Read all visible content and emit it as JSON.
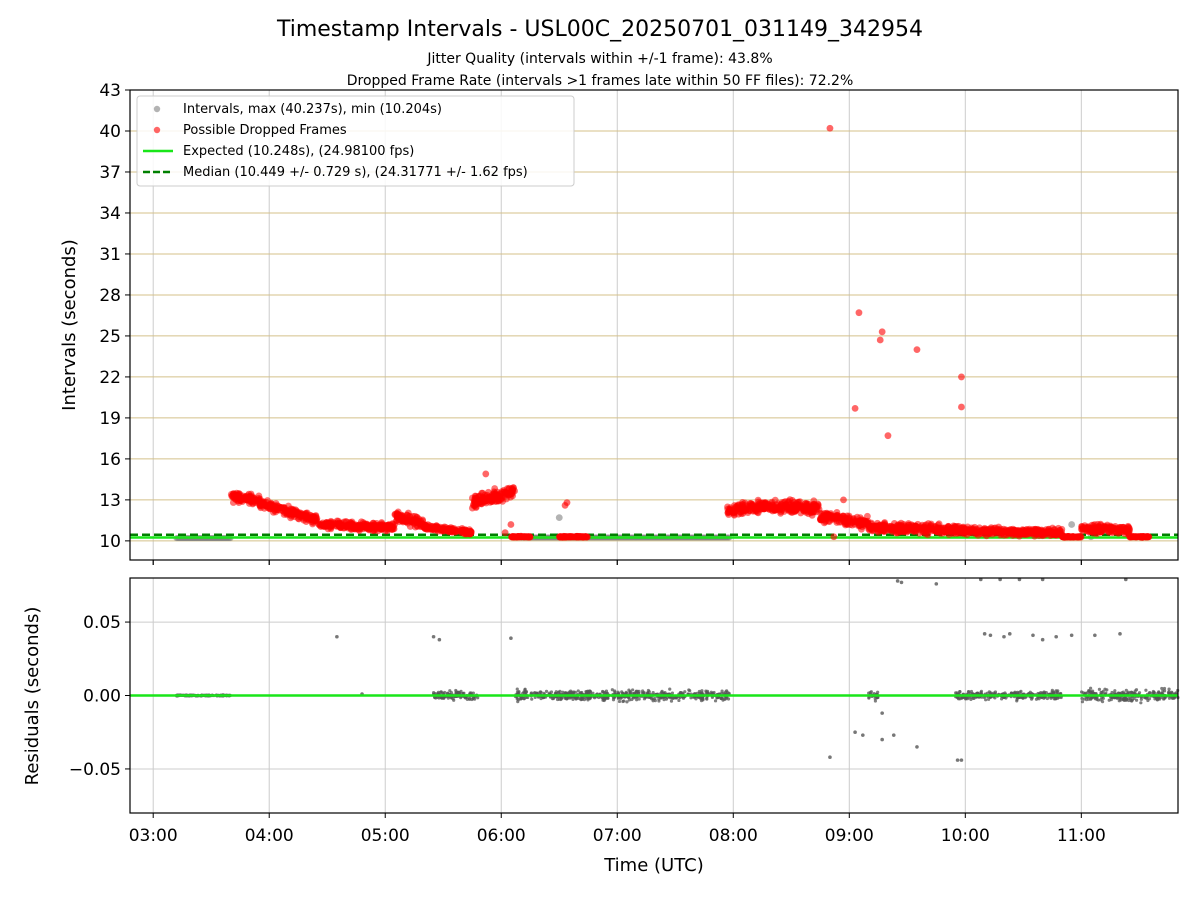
{
  "figure": {
    "title": "Timestamp Intervals - USL00C_20250701_031149_342954",
    "subtitle_1": "Jitter Quality (intervals within +/-1 frame): 43.8%",
    "subtitle_2": "Dropped Frame Rate (intervals >1 frames late within 50 FF files): 72.2%",
    "xlabel": "Time (UTC)"
  },
  "colors": {
    "dropped": "#ff0000",
    "interval": "#808080",
    "expected": "#19e619",
    "median": "#008000",
    "hgrid_top": "#d4c08a",
    "grid": "#cccccc",
    "residual": "#555555"
  },
  "chart_data": [
    {
      "type": "scatter",
      "ylabel": "Intervals (seconds)",
      "xlim": [
        "02:48",
        "11:50"
      ],
      "ylim": [
        8.6,
        43
      ],
      "x_ticks": [
        "03:00",
        "04:00",
        "05:00",
        "06:00",
        "07:00",
        "08:00",
        "09:00",
        "10:00",
        "11:00"
      ],
      "y_ticks": [
        10,
        13,
        16,
        19,
        22,
        25,
        28,
        31,
        34,
        37,
        40,
        43
      ],
      "grid": true,
      "legend_position": "upper-left",
      "legend": [
        "Intervals, max (40.237s), min (10.204s)",
        "Possible Dropped Frames",
        "Expected (10.248s), (24.98100 fps)",
        "Median (10.449 +/- 0.729 s), (24.31771 +/- 1.62 fps)"
      ],
      "expected_line": 10.248,
      "median_line": 10.449,
      "interval_segments": [
        {
          "from": "03:12",
          "to": "03:40",
          "y": 10.2
        },
        {
          "from": "06:10",
          "to": "07:58",
          "y": 10.25
        }
      ],
      "interval_points": [
        {
          "x": "06:30",
          "y": 11.7
        },
        {
          "x": "10:55",
          "y": 11.2
        },
        {
          "x": "11:05",
          "y": 10.3
        }
      ],
      "dropped_clusters": [
        {
          "from": "03:40",
          "to": "03:55",
          "y_start": 13.2,
          "y_end": 13.0,
          "spread": 0.5
        },
        {
          "from": "03:55",
          "to": "04:25",
          "y_start": 12.8,
          "y_end": 11.5,
          "spread": 0.5
        },
        {
          "from": "04:25",
          "to": "05:05",
          "y_start": 11.2,
          "y_end": 11.0,
          "spread": 0.4
        },
        {
          "from": "05:05",
          "to": "05:20",
          "y_start": 11.8,
          "y_end": 11.2,
          "spread": 0.6
        },
        {
          "from": "05:20",
          "to": "05:45",
          "y_start": 11.0,
          "y_end": 10.6,
          "spread": 0.3
        },
        {
          "from": "05:45",
          "to": "06:07",
          "y_start": 12.8,
          "y_end": 13.6,
          "spread": 0.7
        },
        {
          "from": "06:05",
          "to": "06:15",
          "y_start": 10.3,
          "y_end": 10.3,
          "spread": 0.05
        },
        {
          "from": "06:30",
          "to": "06:45",
          "y_start": 10.3,
          "y_end": 10.3,
          "spread": 0.05
        },
        {
          "from": "07:57",
          "to": "08:15",
          "y_start": 12.2,
          "y_end": 12.6,
          "spread": 0.7
        },
        {
          "from": "08:15",
          "to": "08:45",
          "y_start": 12.5,
          "y_end": 12.4,
          "spread": 0.7
        },
        {
          "from": "08:45",
          "to": "09:10",
          "y_start": 11.8,
          "y_end": 11.3,
          "spread": 0.6
        },
        {
          "from": "09:10",
          "to": "10:00",
          "y_start": 11.0,
          "y_end": 10.8,
          "spread": 0.5
        },
        {
          "from": "10:00",
          "to": "10:50",
          "y_start": 10.7,
          "y_end": 10.6,
          "spread": 0.4
        },
        {
          "from": "10:50",
          "to": "11:00",
          "y_start": 10.3,
          "y_end": 10.3,
          "spread": 0.05
        },
        {
          "from": "11:00",
          "to": "11:25",
          "y_start": 10.9,
          "y_end": 10.8,
          "spread": 0.5
        },
        {
          "from": "11:25",
          "to": "11:35",
          "y_start": 10.3,
          "y_end": 10.3,
          "spread": 0.05
        }
      ],
      "dropped_outliers": [
        {
          "x": "08:50",
          "y": 40.2
        },
        {
          "x": "09:05",
          "y": 26.7
        },
        {
          "x": "09:03",
          "y": 19.7
        },
        {
          "x": "09:17",
          "y": 25.3
        },
        {
          "x": "09:16",
          "y": 24.7
        },
        {
          "x": "09:20",
          "y": 17.7
        },
        {
          "x": "09:35",
          "y": 24.0
        },
        {
          "x": "09:58",
          "y": 22.0
        },
        {
          "x": "09:58",
          "y": 19.8
        },
        {
          "x": "06:05",
          "y": 11.2
        },
        {
          "x": "06:02",
          "y": 10.6
        },
        {
          "x": "06:33",
          "y": 12.6
        },
        {
          "x": "06:34",
          "y": 12.8
        },
        {
          "x": "05:52",
          "y": 14.9
        },
        {
          "x": "08:52",
          "y": 10.3
        },
        {
          "x": "08:57",
          "y": 13.0
        }
      ]
    },
    {
      "type": "scatter",
      "ylabel": "Residuals (seconds)",
      "xlim": [
        "02:48",
        "11:50"
      ],
      "ylim": [
        -0.08,
        0.08
      ],
      "x_ticks": [
        "03:00",
        "04:00",
        "05:00",
        "06:00",
        "07:00",
        "08:00",
        "09:00",
        "10:00",
        "11:00"
      ],
      "x_tick_labels": [
        "03:00",
        "04:00",
        "05:00",
        "06:00",
        "07:00",
        "08:00",
        "09:00",
        "10:00",
        "11:00"
      ],
      "y_ticks": [
        0.05,
        0.0,
        -0.05
      ],
      "y_tick_labels": [
        "0.05",
        "0.00",
        "−0.05"
      ],
      "grid": true,
      "zero_line": 0.0,
      "residual_bands": [
        {
          "from": "03:12",
          "to": "03:40",
          "y": 0.0,
          "spread": 0.0005
        },
        {
          "from": "05:25",
          "to": "05:48",
          "y": 0.0,
          "spread": 0.004
        },
        {
          "from": "06:07",
          "to": "07:58",
          "y": 0.0,
          "spread": 0.005
        },
        {
          "from": "09:10",
          "to": "09:15",
          "y": 0.0,
          "spread": 0.004
        },
        {
          "from": "09:55",
          "to": "10:50",
          "y": 0.0,
          "spread": 0.004
        },
        {
          "from": "11:00",
          "to": "11:50",
          "y": 0.0,
          "spread": 0.006
        }
      ],
      "residual_points": [
        {
          "x": "04:35",
          "y": 0.04
        },
        {
          "x": "04:48",
          "y": 0.001
        },
        {
          "x": "05:25",
          "y": 0.04
        },
        {
          "x": "05:28",
          "y": 0.038
        },
        {
          "x": "06:05",
          "y": 0.039
        },
        {
          "x": "05:35",
          "y": -0.002
        },
        {
          "x": "08:50",
          "y": -0.042
        },
        {
          "x": "09:03",
          "y": -0.025
        },
        {
          "x": "09:07",
          "y": -0.027
        },
        {
          "x": "09:17",
          "y": -0.03
        },
        {
          "x": "09:23",
          "y": -0.027
        },
        {
          "x": "09:35",
          "y": -0.035
        },
        {
          "x": "09:56",
          "y": -0.044
        },
        {
          "x": "09:58",
          "y": -0.044
        },
        {
          "x": "09:17",
          "y": -0.012
        },
        {
          "x": "09:25",
          "y": 0.078
        },
        {
          "x": "09:27",
          "y": 0.077
        },
        {
          "x": "09:45",
          "y": 0.076
        },
        {
          "x": "10:08",
          "y": 0.079
        },
        {
          "x": "10:18",
          "y": 0.079
        },
        {
          "x": "10:28",
          "y": 0.079
        },
        {
          "x": "10:40",
          "y": 0.079
        },
        {
          "x": "11:23",
          "y": 0.079
        },
        {
          "x": "10:10",
          "y": 0.042
        },
        {
          "x": "10:13",
          "y": 0.041
        },
        {
          "x": "10:20",
          "y": 0.04
        },
        {
          "x": "10:23",
          "y": 0.042
        },
        {
          "x": "10:35",
          "y": 0.041
        },
        {
          "x": "10:40",
          "y": 0.038
        },
        {
          "x": "10:47",
          "y": 0.04
        },
        {
          "x": "10:55",
          "y": 0.041
        },
        {
          "x": "11:07",
          "y": 0.041
        },
        {
          "x": "11:20",
          "y": 0.042
        },
        {
          "x": "10:27",
          "y": 0.002
        },
        {
          "x": "10:47",
          "y": 0.003
        }
      ]
    }
  ]
}
